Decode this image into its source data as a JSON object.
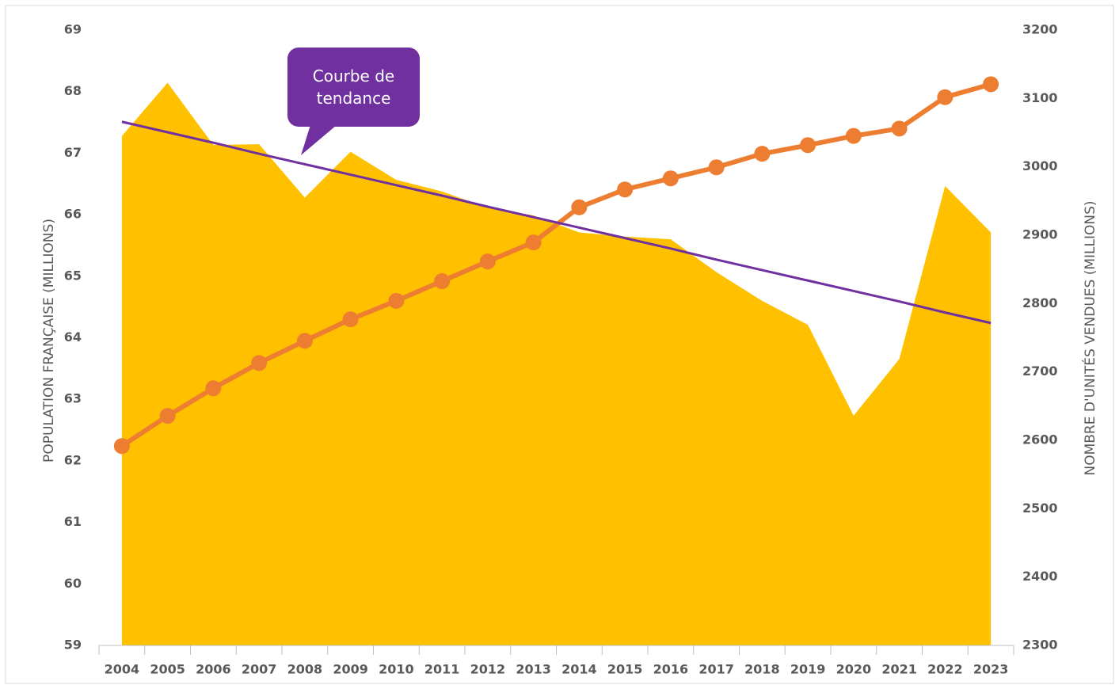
{
  "chart_data": {
    "type": "combo",
    "categories": [
      "2004",
      "2005",
      "2006",
      "2007",
      "2008",
      "2009",
      "2010",
      "2011",
      "2012",
      "2013",
      "2014",
      "2015",
      "2016",
      "2017",
      "2018",
      "2019",
      "2020",
      "2021",
      "2022",
      "2023"
    ],
    "ylabel": "POPULATION FRANÇAISE (MILLIONS)",
    "y2label": "NOMBRE D'UNITÉS VENDUES (MILLIONS)",
    "ylim": [
      59,
      69
    ],
    "yticks": [
      59,
      60,
      61,
      62,
      63,
      64,
      65,
      66,
      67,
      68,
      69
    ],
    "y2lim": [
      2300,
      3200
    ],
    "y2ticks": [
      2300,
      2400,
      2500,
      2600,
      2700,
      2800,
      2900,
      3000,
      3100,
      3200
    ],
    "series": [
      {
        "type": "area",
        "axis": "y2",
        "color": "#ffc000",
        "values": [
          3045,
          3123,
          3032,
          3033,
          2955,
          3022,
          2981,
          2964,
          2940,
          2929,
          2904,
          2898,
          2894,
          2846,
          2804,
          2769,
          2636,
          2719,
          2972,
          2904
        ]
      },
      {
        "type": "line",
        "color": "#ed7d31",
        "values": [
          62.24,
          62.73,
          63.18,
          63.59,
          63.95,
          64.3,
          64.6,
          64.92,
          65.24,
          65.55,
          66.12,
          66.41,
          66.59,
          66.77,
          66.99,
          67.13,
          67.28,
          67.4,
          67.91,
          68.12
        ]
      },
      {
        "type": "trend",
        "color": "#7030a0",
        "values": [
          67.51,
          67.34,
          67.17,
          66.99,
          66.82,
          66.65,
          66.48,
          66.31,
          66.13,
          65.96,
          65.79,
          65.62,
          65.45,
          65.27,
          65.1,
          64.93,
          64.76,
          64.59,
          64.41,
          64.24
        ]
      }
    ],
    "annotation": {
      "text": "Courbe de tendance",
      "color": "#7030a0"
    }
  }
}
